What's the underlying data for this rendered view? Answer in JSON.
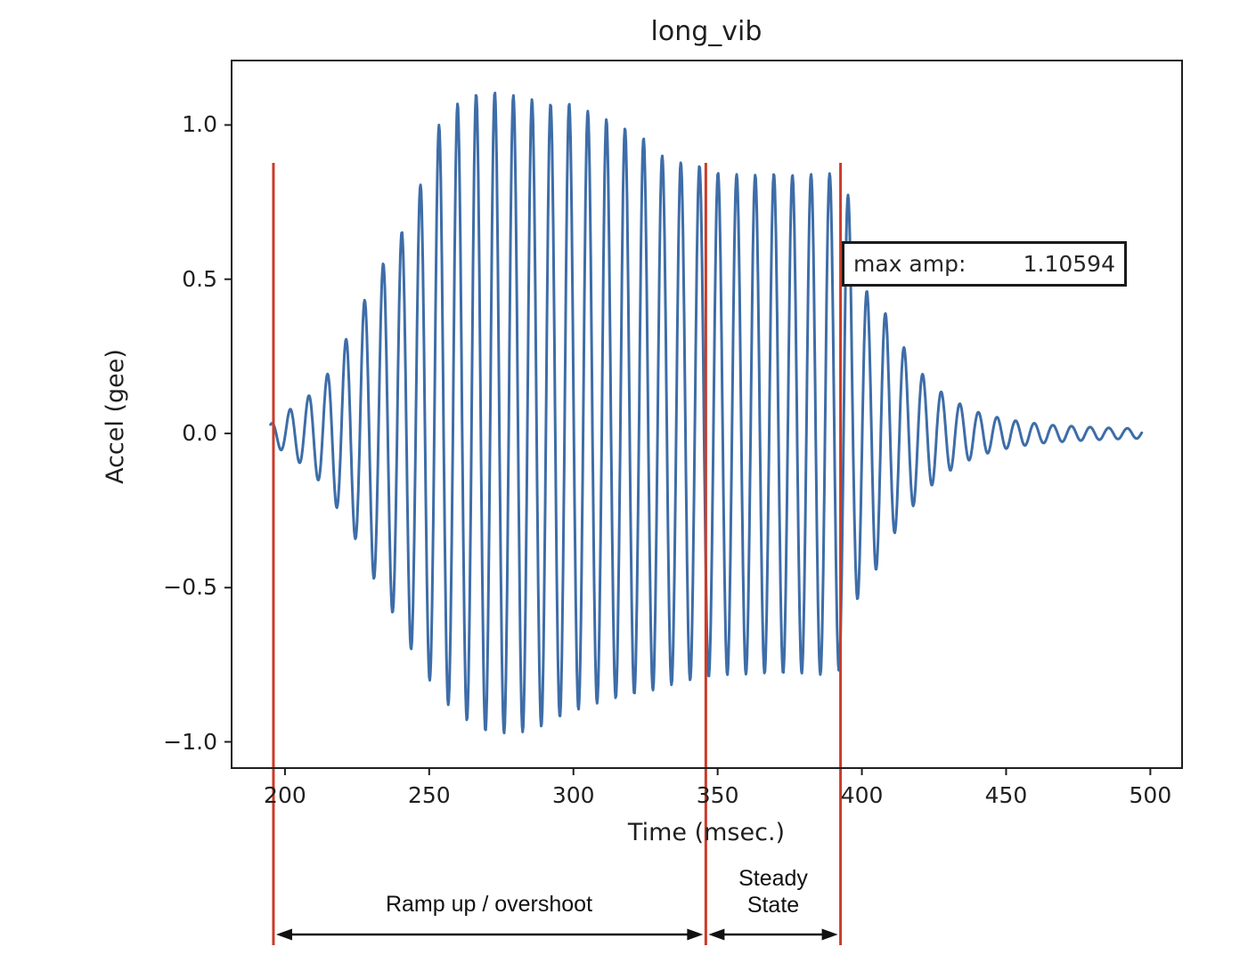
{
  "chart_data": {
    "type": "line",
    "title": "long_vib",
    "xlabel": "Time (msec.)",
    "ylabel": "Accel (gee)",
    "x_ticks": [
      200,
      250,
      300,
      350,
      400,
      450,
      500
    ],
    "y_ticks": [
      -1.0,
      -0.5,
      0.0,
      0.5,
      1.0
    ],
    "x_range": [
      181.5,
      511.0
    ],
    "y_range": [
      -1.085,
      1.209
    ],
    "grid": false,
    "line_color": "#3e6da8",
    "axis_color": "#1f1f1f",
    "max_amp_box": {
      "label": "max amp:",
      "value": "1.10594"
    },
    "marker_lines": {
      "color": "#cb3b28",
      "times": [
        196.0,
        345.9,
        392.6
      ]
    },
    "regions": [
      {
        "label": "Ramp up / overshoot",
        "t_start": 196.0,
        "t_end": 345.9
      },
      {
        "label": "Steady State",
        "t_start": 345.9,
        "t_end": 392.6
      }
    ],
    "signal": {
      "t_start": 195,
      "t_end": 497,
      "dt": 0.2,
      "period_ms": 6.45,
      "phase_zero_t": 200.17,
      "max_amp": 1.10594,
      "envelope_pos": [
        [
          195,
          0.03
        ],
        [
          198,
          0.05
        ],
        [
          202,
          0.08
        ],
        [
          206,
          0.1
        ],
        [
          210,
          0.14
        ],
        [
          214,
          0.18
        ],
        [
          218,
          0.25
        ],
        [
          222,
          0.32
        ],
        [
          226,
          0.4
        ],
        [
          230,
          0.48
        ],
        [
          234,
          0.55
        ],
        [
          238,
          0.61
        ],
        [
          242,
          0.68
        ],
        [
          246,
          0.78
        ],
        [
          250,
          0.89
        ],
        [
          253.4,
          1.0
        ],
        [
          256,
          1.03
        ],
        [
          259.9,
          1.07
        ],
        [
          263,
          1.09
        ],
        [
          266.3,
          1.1
        ],
        [
          269.5,
          1.104
        ],
        [
          272.8,
          1.106
        ],
        [
          276,
          1.102
        ],
        [
          279.2,
          1.096
        ],
        [
          285.6,
          1.083
        ],
        [
          292.1,
          1.068
        ],
        [
          298.5,
          1.07
        ],
        [
          305,
          1.045
        ],
        [
          311.4,
          1.018
        ],
        [
          317.9,
          0.99
        ],
        [
          324.3,
          0.958
        ],
        [
          330.8,
          0.9
        ],
        [
          337.2,
          0.878
        ],
        [
          343.7,
          0.868
        ],
        [
          350.1,
          0.845
        ],
        [
          356.6,
          0.84
        ],
        [
          363,
          0.838
        ],
        [
          369.5,
          0.842
        ],
        [
          375.9,
          0.838
        ],
        [
          382.4,
          0.84
        ],
        [
          388.8,
          0.843
        ],
        [
          394.4,
          0.83
        ],
        [
          397.5,
          0.62
        ],
        [
          400.9,
          0.47
        ],
        [
          407.3,
          0.405
        ],
        [
          413.8,
          0.29
        ],
        [
          420.2,
          0.2
        ],
        [
          426.7,
          0.14
        ],
        [
          433.1,
          0.1
        ],
        [
          440,
          0.07
        ],
        [
          448,
          0.05
        ],
        [
          456,
          0.037
        ],
        [
          466,
          0.027
        ],
        [
          478,
          0.021
        ],
        [
          488,
          0.017
        ],
        [
          497,
          0.016
        ]
      ],
      "envelope_neg": [
        [
          195,
          0.03
        ],
        [
          198,
          0.05
        ],
        [
          202,
          0.075
        ],
        [
          205,
          0.095
        ],
        [
          211.4,
          0.15
        ],
        [
          217.9,
          0.24
        ],
        [
          224.3,
          0.34
        ],
        [
          230.8,
          0.47
        ],
        [
          237.2,
          0.58
        ],
        [
          243.7,
          0.7
        ],
        [
          250.1,
          0.8
        ],
        [
          256.6,
          0.88
        ],
        [
          263,
          0.93
        ],
        [
          269.5,
          0.965
        ],
        [
          276,
          0.972
        ],
        [
          282.4,
          0.968
        ],
        [
          288.9,
          0.95
        ],
        [
          295.3,
          0.92
        ],
        [
          301.8,
          0.895
        ],
        [
          308.2,
          0.875
        ],
        [
          314.7,
          0.858
        ],
        [
          321.1,
          0.845
        ],
        [
          327.6,
          0.833
        ],
        [
          334,
          0.815
        ],
        [
          340.5,
          0.8
        ],
        [
          346.9,
          0.79
        ],
        [
          353.4,
          0.783
        ],
        [
          366.3,
          0.778
        ],
        [
          379.2,
          0.778
        ],
        [
          391.1,
          0.785
        ],
        [
          394.8,
          0.72
        ],
        [
          397.6,
          0.55
        ],
        [
          404,
          0.46
        ],
        [
          410.5,
          0.335
        ],
        [
          416.9,
          0.245
        ],
        [
          423.4,
          0.175
        ],
        [
          429.8,
          0.125
        ],
        [
          436.3,
          0.09
        ],
        [
          444,
          0.063
        ],
        [
          452,
          0.045
        ],
        [
          462,
          0.032
        ],
        [
          474,
          0.024
        ],
        [
          486,
          0.019
        ],
        [
          497,
          0.016
        ]
      ]
    }
  }
}
